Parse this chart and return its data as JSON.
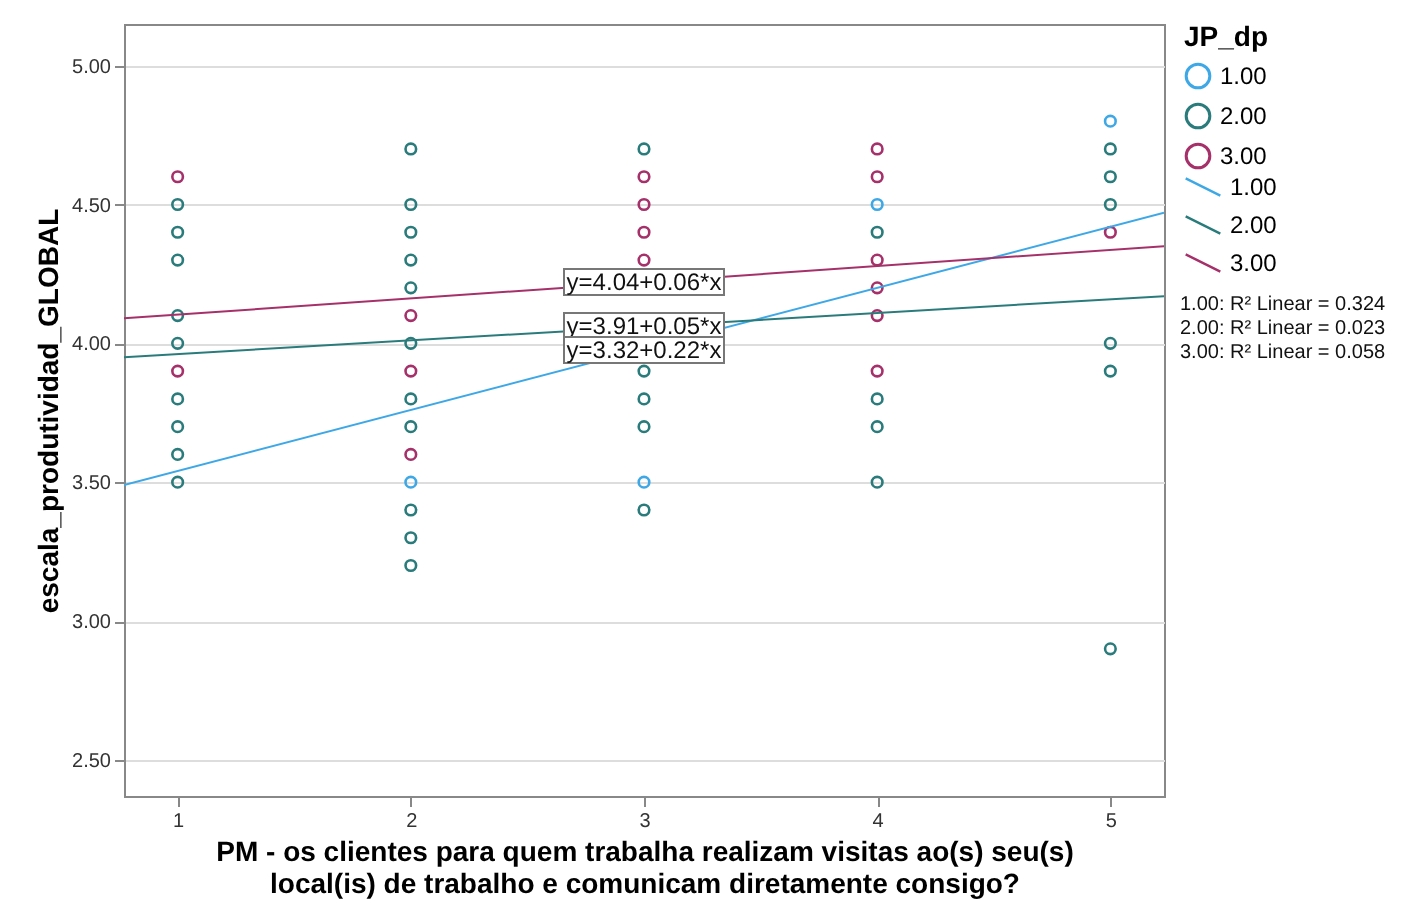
{
  "chart_data": {
    "type": "scatter",
    "xlabel": "PM - os clientes para quem trabalha realizam visitas ao(s) seu(s)\nlocal(is) de trabalho e comunicam diretamente consigo?",
    "ylabel": "escala_produtividad_GLOBAL",
    "legend_title": "JP_dp",
    "legend": "right",
    "grid": "y",
    "marker": "circle",
    "xlim": [
      0.77,
      5.23
    ],
    "ylim": [
      2.37,
      5.15
    ],
    "xticks": [
      1,
      2,
      3,
      4,
      5
    ],
    "yticks": [
      {
        "value": 2.5,
        "label": "2.50"
      },
      {
        "value": 3.0,
        "label": "3.00"
      },
      {
        "value": 3.5,
        "label": "3.50"
      },
      {
        "value": 4.0,
        "label": "4.00"
      },
      {
        "value": 4.5,
        "label": "4.50"
      },
      {
        "value": 5.0,
        "label": "5.00"
      }
    ],
    "series": [
      {
        "name": "1.00",
        "color": "#3ea8e6",
        "x": [
          2,
          3,
          4,
          5
        ],
        "values": [
          3.5,
          3.5,
          4.5,
          4.8
        ]
      },
      {
        "name": "2.00",
        "color": "#2a7b7b",
        "x": [
          1,
          1,
          1,
          1,
          1,
          1,
          1,
          1,
          1,
          2,
          2,
          2,
          2,
          2,
          2,
          2,
          2,
          2,
          2,
          2,
          3,
          3,
          3,
          3,
          3,
          4,
          4,
          4,
          4,
          5,
          5,
          5,
          5,
          5,
          5
        ],
        "values": [
          4.5,
          4.4,
          4.3,
          4.1,
          4.0,
          3.8,
          3.7,
          3.6,
          3.5,
          4.7,
          4.5,
          4.4,
          4.3,
          4.2,
          4.0,
          3.8,
          3.7,
          3.4,
          3.3,
          3.2,
          4.7,
          3.9,
          3.8,
          3.7,
          3.4,
          4.4,
          3.8,
          3.7,
          3.5,
          4.7,
          4.6,
          4.5,
          4.0,
          3.9,
          2.9
        ]
      },
      {
        "name": "3.00",
        "color": "#a5306a",
        "x": [
          1,
          1,
          2,
          2,
          2,
          3,
          3,
          3,
          3,
          4,
          4,
          4,
          4,
          4,
          4,
          5
        ],
        "values": [
          4.6,
          3.9,
          4.1,
          3.9,
          3.6,
          4.6,
          4.5,
          4.4,
          4.3,
          4.7,
          4.6,
          4.3,
          4.2,
          4.1,
          3.9,
          4.4
        ]
      },
      {
        "name": "1.00",
        "color": "#3ea8e6",
        "type": "line",
        "marker": "none",
        "x": [
          0.77,
          5.23
        ],
        "values": [
          3.49,
          4.47
        ]
      },
      {
        "name": "2.00",
        "color": "#2a7b7b",
        "type": "line",
        "marker": "none",
        "x": [
          0.77,
          5.23
        ],
        "values": [
          3.95,
          4.17
        ]
      },
      {
        "name": "3.00",
        "color": "#a5306a",
        "type": "line",
        "marker": "none",
        "x": [
          0.77,
          5.23
        ],
        "values": [
          4.09,
          4.35
        ]
      }
    ],
    "annotations": [
      "y=4.04+0.06*x",
      "y=3.91+0.05*x",
      "y=3.32+0.22*x",
      "1.00: R² Linear = 0.324",
      "2.00: R² Linear = 0.023",
      "3.00: R² Linear = 0.058"
    ]
  }
}
